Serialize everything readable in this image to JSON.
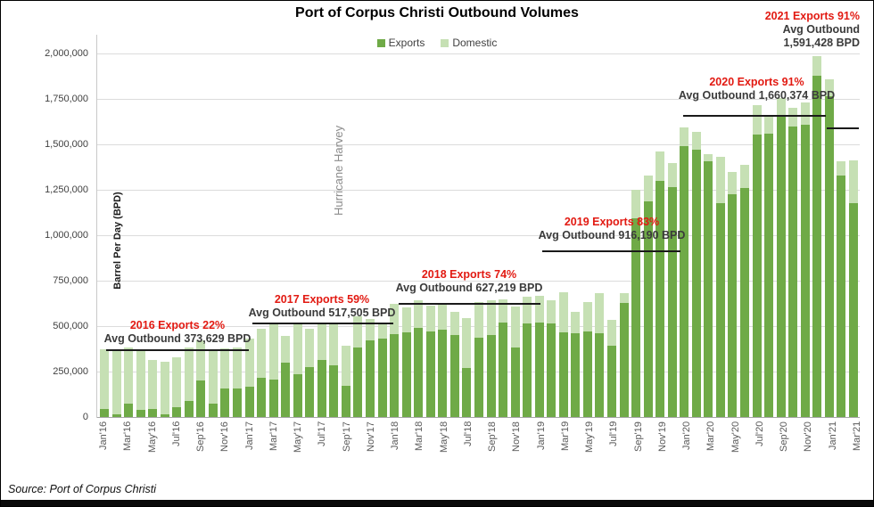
{
  "title": "Port of Corpus Christi Outbound Volumes",
  "legend": {
    "exports_label": "Exports",
    "domestic_label": "Domestic"
  },
  "y_axis_title": "Barrel Per Day (BPD)",
  "hurricane_label": "Hurricane Harvey",
  "source": "Source: Port of Corpus Christi",
  "colors": {
    "exports": "#6faa47",
    "domestic": "#c6e0b4",
    "annotation_red": "#e21a12",
    "annotation_black": "#3b3b3b"
  },
  "annotations": [
    {
      "red": "2016 Exports 22%",
      "black": "Avg Outbound 373,629 BPD",
      "avg_value": 373629
    },
    {
      "red": "2017 Exports 59%",
      "black": "Avg Outbound 517,505 BPD",
      "avg_value": 517505
    },
    {
      "red": "2018 Exports 74%",
      "black": "Avg Outbound 627,219 BPD",
      "avg_value": 627219
    },
    {
      "red": "2019 Exports 83%",
      "black": "Avg Outbound 916,190 BPD",
      "avg_value": 916190
    },
    {
      "red": "2020 Exports 91%",
      "black": "Avg Outbound 1,660,374 BPD",
      "avg_value": 1660374
    },
    {
      "red": "2021 Exports 91%",
      "black": "Avg Outbound",
      "black2": "1,591,428  BPD",
      "avg_value": 1591428
    }
  ],
  "chart_data": {
    "type": "bar",
    "stacked": true,
    "title": "Port of Corpus Christi Outbound Volumes",
    "ylabel": "Barrel Per Day (BPD)",
    "ylim": [
      0,
      2107000
    ],
    "y_ticks": [
      {
        "value": 0,
        "label": "0"
      },
      {
        "value": 250000,
        "label": "250,000"
      },
      {
        "value": 500000,
        "label": "500,000"
      },
      {
        "value": 750000,
        "label": "750,000"
      },
      {
        "value": 1000000,
        "label": "1,000,000"
      },
      {
        "value": 1250000,
        "label": "1,250,000"
      },
      {
        "value": 1500000,
        "label": "1,500,000"
      },
      {
        "value": 1750000,
        "label": "1,750,000"
      },
      {
        "value": 2000000,
        "label": "2,000,000"
      }
    ],
    "categories": [
      "Jan'16",
      "Feb'16",
      "Mar'16",
      "Apr'16",
      "May'16",
      "Jun'16",
      "Jul'16",
      "Aug'16",
      "Sep'16",
      "Oct'16",
      "Nov'16",
      "Dec'16",
      "Jan'17",
      "Feb'17",
      "Mar'17",
      "Apr'17",
      "May'17",
      "Jun'17",
      "Jul'17",
      "Aug'17",
      "Sep'17",
      "Oct'17",
      "Nov'17",
      "Dec'17",
      "Jan'18",
      "Feb'18",
      "Mar'18",
      "Apr'18",
      "May'18",
      "Jun'18",
      "Jul'18",
      "Aug'18",
      "Sep'18",
      "Oct'18",
      "Nov'18",
      "Dec'18",
      "Jan'19",
      "Feb'19",
      "Mar'19",
      "Apr'19",
      "May'19",
      "Jun'19",
      "Jul'19",
      "Aug'19",
      "Sep'19",
      "Oct'19",
      "Nov'19",
      "Dec'19",
      "Jan'20",
      "Feb'20",
      "Mar'20",
      "Apr'20",
      "May'20",
      "Jun'20",
      "Jul'20",
      "Aug'20",
      "Sep'20",
      "Oct'20",
      "Nov'20",
      "Dec'20",
      "Jan'21",
      "Feb'21",
      "Mar'21"
    ],
    "x_tick_every": 2,
    "series": [
      {
        "name": "Exports",
        "values": [
          45000,
          15000,
          75000,
          40000,
          45000,
          15000,
          55000,
          90000,
          200000,
          75000,
          155000,
          155000,
          165000,
          215000,
          205000,
          297000,
          235000,
          276000,
          314000,
          284000,
          170000,
          382000,
          420000,
          430000,
          455000,
          465000,
          490000,
          470000,
          480000,
          450000,
          270000,
          435000,
          450000,
          520000,
          385000,
          515000,
          520000,
          515000,
          465000,
          460000,
          470000,
          460000,
          390000,
          628000,
          1095000,
          1185000,
          1300000,
          1265000,
          1490000,
          1472000,
          1405000,
          1178000,
          1224000,
          1260000,
          1554000,
          1560000,
          1660000,
          1600000,
          1610000,
          1880000,
          1765000,
          1330000,
          1175000
        ]
      },
      {
        "name": "Domestic",
        "values": [
          330000,
          355000,
          307000,
          332000,
          270000,
          290000,
          275000,
          290000,
          220000,
          295000,
          225000,
          230000,
          266000,
          269000,
          303000,
          151000,
          273000,
          208000,
          199000,
          224000,
          220000,
          172000,
          120000,
          90000,
          170000,
          140000,
          150000,
          145000,
          147000,
          128000,
          276000,
          196000,
          194000,
          127000,
          223000,
          145000,
          148000,
          126000,
          220000,
          118000,
          161000,
          220000,
          145000,
          52000,
          155000,
          145000,
          160000,
          130000,
          105000,
          98000,
          40000,
          252000,
          122000,
          127000,
          163000,
          100000,
          95000,
          100000,
          120000,
          105000,
          95000,
          77000,
          237000
        ]
      }
    ],
    "legend_position": "top-center",
    "grid": true
  }
}
